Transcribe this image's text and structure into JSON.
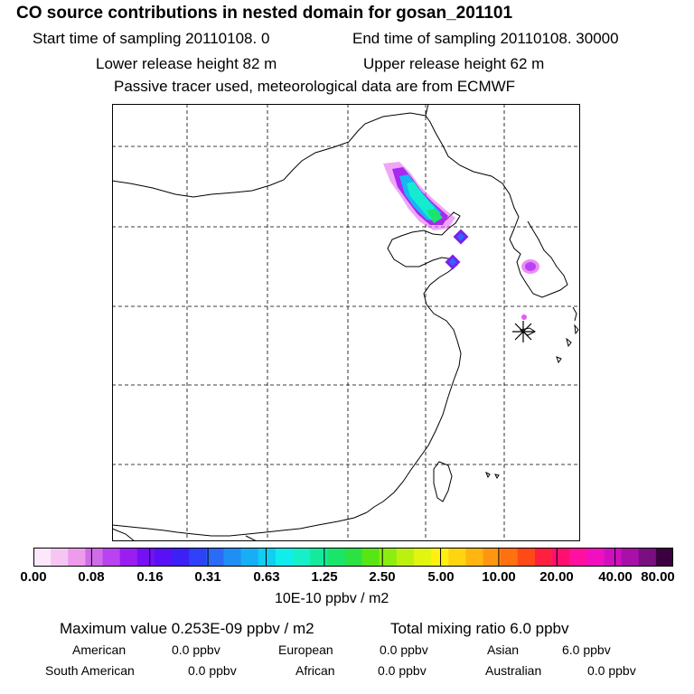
{
  "header": {
    "title": "CO  source contributions in nested domain for gosan_201101",
    "start_label": "Start time of sampling 20110108.     0",
    "end_label": "End time of sampling 20110108. 30000",
    "lower_label": "Lower release height   82 m",
    "upper_label": "Upper release height   62 m",
    "tracer_note": "Passive tracer used, meteorological data are from ECMWF"
  },
  "colorbar": {
    "colors": [
      "#fde8fb",
      "#f6c6f3",
      "#ee9bec",
      "#d06ce8",
      "#b843f0",
      "#9a1ef2",
      "#7610f5",
      "#5a10f7",
      "#3d20f6",
      "#2f42f7",
      "#2a6bf7",
      "#1f8ff6",
      "#17aef6",
      "#10cff2",
      "#10edeb",
      "#15f0c8",
      "#14ea9b",
      "#19e56b",
      "#2ae243",
      "#58e516",
      "#8ded10",
      "#bdf010",
      "#e1f510",
      "#fff010",
      "#ffd510",
      "#ffb710",
      "#ff9610",
      "#ff7010",
      "#ff4a18",
      "#ff2040",
      "#ff1070",
      "#ff10a0",
      "#f010c0",
      "#d010c0",
      "#a810a8",
      "#7a1080",
      "#3c0040"
    ],
    "labels": [
      "0.00",
      "0.08",
      "0.16",
      "0.31",
      "0.63",
      "1.25",
      "2.50",
      "5.00",
      "10.00",
      "20.00",
      "40.00",
      "80.00"
    ],
    "unit": "10E-10 ppbv / m2"
  },
  "summary": {
    "max_text": "Maximum value  0.253E-09 ppbv / m2",
    "total_text": "Total mixing ratio       6.0 ppbv"
  },
  "regions": [
    {
      "name": "American",
      "value": "0.0 ppbv"
    },
    {
      "name": "European",
      "value": "0.0 ppbv"
    },
    {
      "name": "Asian",
      "value": "6.0 ppbv"
    },
    {
      "name": "South American",
      "value": "0.0 ppbv"
    },
    {
      "name": "African",
      "value": "0.0 ppbv"
    },
    {
      "name": "Australian",
      "value": "0.0 ppbv"
    }
  ]
}
